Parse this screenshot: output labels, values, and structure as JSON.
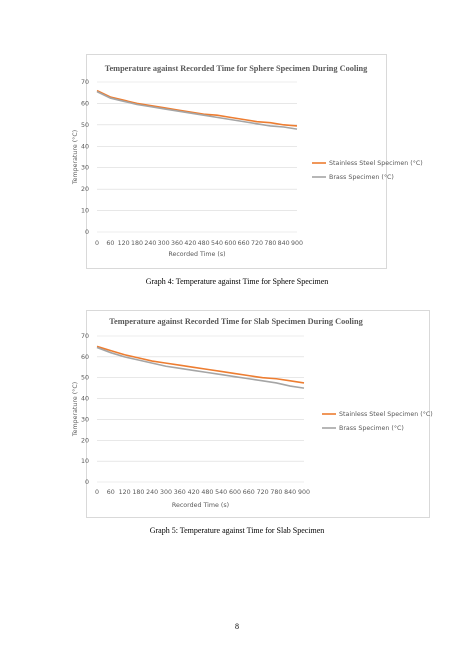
{
  "chart_data": [
    {
      "type": "line",
      "title": "Temperature against Recorded Time for Sphere Specimen During Cooling",
      "x_label": "Recorded Time (s)",
      "y_label": "Temperature (°C)",
      "x": [
        0,
        60,
        120,
        180,
        240,
        300,
        360,
        420,
        480,
        540,
        600,
        660,
        720,
        780,
        840,
        900
      ],
      "xlim": [
        0,
        900
      ],
      "xticks": [
        0,
        60,
        120,
        180,
        240,
        300,
        360,
        420,
        480,
        540,
        600,
        660,
        720,
        780,
        840,
        900
      ],
      "ylim": [
        0,
        70
      ],
      "yticks": [
        0,
        10,
        20,
        30,
        40,
        50,
        60,
        70
      ],
      "grid": true,
      "legend": "right",
      "series": [
        {
          "name": "Stainless Steel  Specimen (°C)",
          "color": "#ed7d31",
          "values": [
            66,
            63,
            61.5,
            60,
            59,
            58,
            57,
            56,
            55,
            54.5,
            53.5,
            52.5,
            51.5,
            51,
            50,
            49.5
          ]
        },
        {
          "name": "Brass Specimen (°C)",
          "color": "#a5a5a5",
          "values": [
            65.5,
            62.5,
            61,
            59.5,
            58.5,
            57.5,
            56.5,
            55.5,
            54.5,
            53.5,
            52.5,
            51.5,
            50.5,
            49.5,
            49,
            48
          ]
        }
      ]
    },
    {
      "type": "line",
      "title": "Temperature against Recorded Time for Slab Specimen During Cooling",
      "x_label": "Recorded Time (s)",
      "y_label": "Temperature (°C)",
      "x": [
        0,
        60,
        120,
        180,
        240,
        300,
        360,
        420,
        480,
        540,
        600,
        660,
        720,
        780,
        840,
        900
      ],
      "xlim": [
        0,
        900
      ],
      "xticks": [
        0,
        60,
        120,
        180,
        240,
        300,
        360,
        420,
        480,
        540,
        600,
        660,
        720,
        780,
        840,
        900
      ],
      "ylim": [
        0,
        70
      ],
      "yticks": [
        0,
        10,
        20,
        30,
        40,
        50,
        60,
        70
      ],
      "grid": true,
      "legend": "right",
      "series": [
        {
          "name": "Stainless Steel Specimen (°C)",
          "color": "#ed7d31",
          "values": [
            65,
            63,
            61,
            59.5,
            58,
            57,
            56,
            55,
            54,
            53,
            52,
            51,
            50,
            49.5,
            48.5,
            47.5
          ]
        },
        {
          "name": "Brass Specimen (°C)",
          "color": "#a5a5a5",
          "values": [
            64.5,
            62,
            60,
            58.5,
            57,
            55.5,
            54.5,
            53.5,
            52.5,
            51.5,
            50.5,
            49.5,
            48.5,
            47.5,
            46,
            45
          ]
        }
      ]
    }
  ],
  "captions": [
    "Graph 4: Temperature against Time for Sphere Specimen",
    "Graph 5: Temperature against Time for Slab Specimen"
  ],
  "page_number": "8"
}
